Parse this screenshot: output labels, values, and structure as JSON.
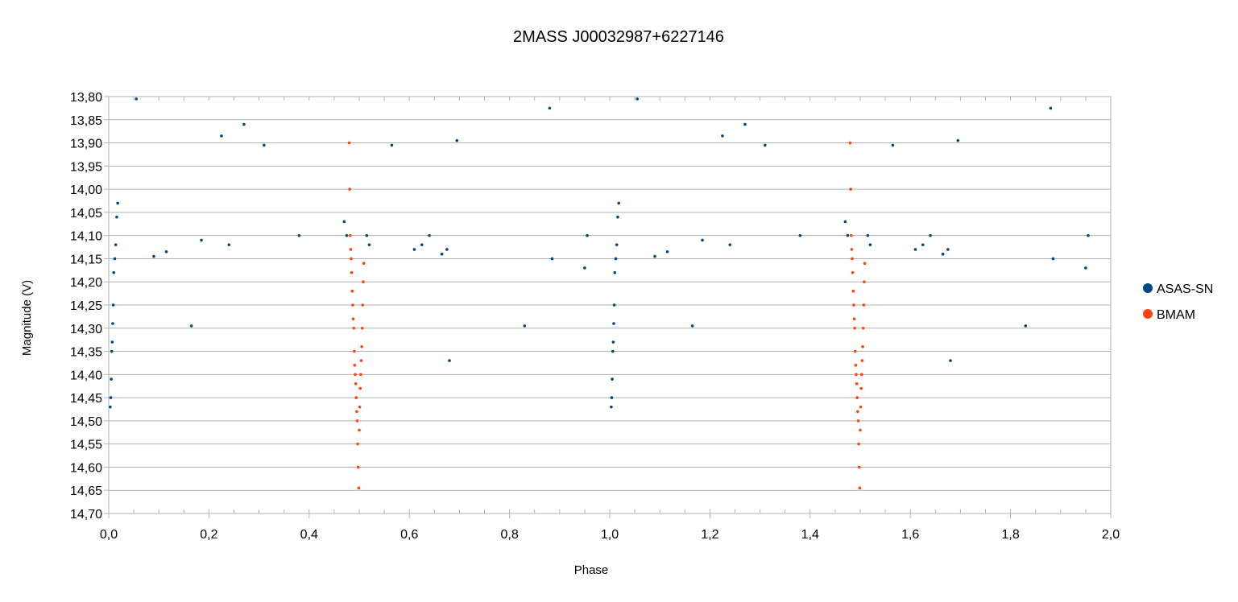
{
  "chart_data": {
    "type": "scatter",
    "title": "2MASS J00032987+6227146",
    "xlabel": "Phase",
    "ylabel": "Magnitude (V)",
    "xlim": [
      0.0,
      2.0
    ],
    "ylim": [
      13.8,
      14.7
    ],
    "y_inverted": true,
    "x_ticks": [
      0.0,
      0.2,
      0.4,
      0.6,
      0.8,
      1.0,
      1.2,
      1.4,
      1.6,
      1.8,
      2.0
    ],
    "x_tick_labels": [
      "0,0",
      "0,2",
      "0,4",
      "0,6",
      "0,8",
      "1,0",
      "1,2",
      "1,4",
      "1,6",
      "1,8",
      "2,0"
    ],
    "y_ticks": [
      13.8,
      13.85,
      13.9,
      13.95,
      14.0,
      14.05,
      14.1,
      14.15,
      14.2,
      14.25,
      14.3,
      14.35,
      14.4,
      14.45,
      14.5,
      14.55,
      14.6,
      14.65,
      14.7
    ],
    "y_tick_labels": [
      "13,80",
      "13,85",
      "13,90",
      "13,95",
      "14,00",
      "14,05",
      "14,10",
      "14,15",
      "14,20",
      "14,25",
      "14,30",
      "14,35",
      "14,40",
      "14,45",
      "14,50",
      "14,55",
      "14,60",
      "14,65",
      "14,70"
    ],
    "grid": "horizontal",
    "legend_position": "right",
    "series": [
      {
        "name": "ASAS-SN",
        "color": "#004586",
        "points": [
          [
            0.003,
            14.47
          ],
          [
            0.004,
            14.45
          ],
          [
            0.005,
            14.41
          ],
          [
            0.006,
            14.35
          ],
          [
            0.007,
            14.33
          ],
          [
            0.008,
            14.29
          ],
          [
            0.009,
            14.25
          ],
          [
            0.01,
            14.18
          ],
          [
            0.012,
            14.15
          ],
          [
            0.014,
            14.12
          ],
          [
            0.016,
            14.06
          ],
          [
            0.018,
            14.03
          ],
          [
            0.055,
            13.805
          ],
          [
            0.09,
            14.145
          ],
          [
            0.115,
            14.135
          ],
          [
            0.165,
            14.295
          ],
          [
            0.185,
            14.11
          ],
          [
            0.24,
            14.12
          ],
          [
            0.225,
            13.885
          ],
          [
            0.27,
            13.86
          ],
          [
            0.31,
            13.905
          ],
          [
            0.38,
            14.1
          ],
          [
            0.68,
            14.37
          ],
          [
            0.695,
            13.895
          ],
          [
            0.565,
            13.905
          ],
          [
            0.61,
            14.13
          ],
          [
            0.625,
            14.12
          ],
          [
            0.64,
            14.1
          ],
          [
            0.665,
            14.14
          ],
          [
            0.675,
            14.13
          ],
          [
            0.83,
            14.295
          ],
          [
            0.88,
            13.825
          ],
          [
            0.885,
            14.15
          ],
          [
            0.95,
            14.17
          ],
          [
            0.955,
            14.1
          ],
          [
            0.47,
            14.07
          ],
          [
            0.475,
            14.1
          ],
          [
            0.52,
            14.12
          ],
          [
            0.515,
            14.1
          ]
        ]
      },
      {
        "name": "BMAM",
        "color": "#ff420e",
        "points": [
          [
            0.48,
            13.9
          ],
          [
            0.481,
            14.0
          ],
          [
            0.482,
            14.1
          ],
          [
            0.483,
            14.13
          ],
          [
            0.484,
            14.15
          ],
          [
            0.485,
            14.18
          ],
          [
            0.486,
            14.22
          ],
          [
            0.487,
            14.25
          ],
          [
            0.488,
            14.28
          ],
          [
            0.489,
            14.3
          ],
          [
            0.49,
            14.35
          ],
          [
            0.491,
            14.38
          ],
          [
            0.492,
            14.4
          ],
          [
            0.493,
            14.42
          ],
          [
            0.494,
            14.45
          ],
          [
            0.495,
            14.48
          ],
          [
            0.496,
            14.5
          ],
          [
            0.497,
            14.55
          ],
          [
            0.498,
            14.6
          ],
          [
            0.499,
            14.645
          ],
          [
            0.5,
            14.52
          ],
          [
            0.501,
            14.47
          ],
          [
            0.502,
            14.43
          ],
          [
            0.503,
            14.4
          ],
          [
            0.504,
            14.37
          ],
          [
            0.505,
            14.34
          ],
          [
            0.506,
            14.3
          ],
          [
            0.507,
            14.25
          ],
          [
            0.508,
            14.2
          ],
          [
            0.509,
            14.16
          ]
        ]
      }
    ]
  }
}
